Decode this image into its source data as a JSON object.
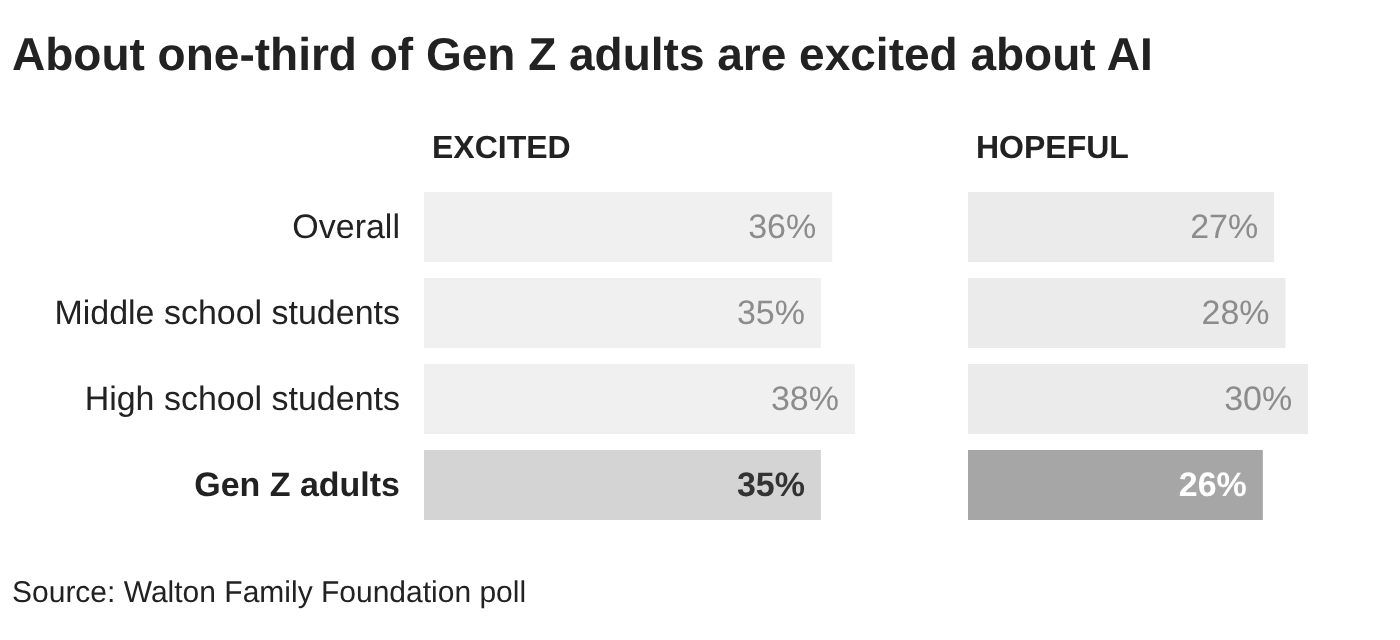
{
  "chart_data": [
    {
      "type": "bar",
      "orientation": "horizontal",
      "title": "About one-third of Gen Z adults are excited about AI",
      "subtitle": "EXCITED",
      "categories": [
        "Overall",
        "Middle school students",
        "High school students",
        "Gen Z adults"
      ],
      "values": [
        36,
        35,
        38,
        35
      ],
      "value_labels": [
        "36%",
        "35%",
        "38%",
        "35%"
      ],
      "colors": [
        "#f0f0f0",
        "#f0f0f0",
        "#f0f0f0",
        "#d4d4d4"
      ],
      "tick_labels": "y",
      "grid": false,
      "legend": false,
      "annotations": [
        "Source: Walton Family Foundation poll"
      ]
    },
    {
      "type": "bar",
      "orientation": "horizontal",
      "subtitle": "HOPEFUL",
      "values": [
        27,
        28,
        30,
        26
      ],
      "value_labels": [
        "27%",
        "28%",
        "30%",
        "26%"
      ],
      "colors": [
        "#ebebeb",
        "#ebebeb",
        "#ebebeb",
        "#a6a6a6"
      ],
      "tick_labels": false,
      "grid": false,
      "legend": false
    }
  ]
}
